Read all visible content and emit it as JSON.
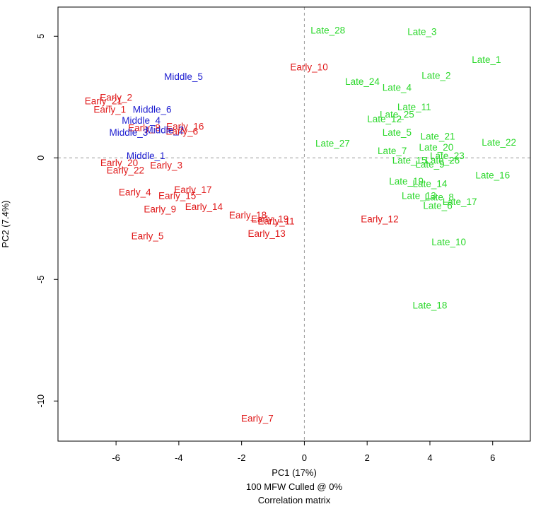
{
  "chart_data": {
    "type": "scatter",
    "xlabel": "PC1 (17%)",
    "ylabel": "PC2 (7.4%)",
    "caption_lines": [
      "100 MFW  Culled @ 0%",
      "Correlation matrix"
    ],
    "xlim": [
      -7.85,
      7.2
    ],
    "ylim": [
      -11.65,
      6.2
    ],
    "xticks": [
      -6,
      -4,
      -2,
      0,
      2,
      4,
      6
    ],
    "yticks": [
      5,
      0,
      -5,
      -10
    ],
    "grid": false,
    "reference_lines": {
      "x": 0,
      "y": 0
    },
    "series": [
      {
        "name": "Early",
        "color": "#e0191a",
        "points": [
          {
            "label": "Early_1",
            "x": -6.2,
            "y": 2.0
          },
          {
            "label": "Early_2",
            "x": -6.0,
            "y": 2.5
          },
          {
            "label": "Early_21",
            "x": -6.4,
            "y": 2.35
          },
          {
            "label": "Early_3",
            "x": -4.4,
            "y": -0.3
          },
          {
            "label": "Early_4",
            "x": -5.4,
            "y": -1.4
          },
          {
            "label": "Early_5",
            "x": -5.0,
            "y": -3.2
          },
          {
            "label": "Early_6",
            "x": -3.9,
            "y": 1.1
          },
          {
            "label": "Early_7",
            "x": -1.5,
            "y": -10.7
          },
          {
            "label": "Early_8",
            "x": -5.1,
            "y": 1.25
          },
          {
            "label": "Early_9",
            "x": -4.6,
            "y": -2.1
          },
          {
            "label": "Early_10",
            "x": 0.15,
            "y": 3.75
          },
          {
            "label": "Early_11",
            "x": -0.9,
            "y": -2.6
          },
          {
            "label": "Early_12",
            "x": 2.4,
            "y": -2.5
          },
          {
            "label": "Early_13",
            "x": -1.2,
            "y": -3.1
          },
          {
            "label": "Early_14",
            "x": -3.2,
            "y": -2.0
          },
          {
            "label": "Early_15",
            "x": -4.05,
            "y": -1.55
          },
          {
            "label": "Early_16",
            "x": -3.8,
            "y": 1.3
          },
          {
            "label": "Early_17",
            "x": -3.55,
            "y": -1.3
          },
          {
            "label": "Early_18",
            "x": -1.8,
            "y": -2.35
          },
          {
            "label": "Early_19",
            "x": -1.1,
            "y": -2.5
          },
          {
            "label": "Early_20",
            "x": -5.9,
            "y": -0.2
          },
          {
            "label": "Early_22",
            "x": -5.7,
            "y": -0.5
          }
        ]
      },
      {
        "name": "Middle",
        "color": "#1c1cd0",
        "points": [
          {
            "label": "Middle_1",
            "x": -5.05,
            "y": 0.1
          },
          {
            "label": "Middle_2",
            "x": -4.45,
            "y": 1.15
          },
          {
            "label": "Middle_3",
            "x": -5.6,
            "y": 1.05
          },
          {
            "label": "Middle_4",
            "x": -5.2,
            "y": 1.55
          },
          {
            "label": "Middle_5",
            "x": -3.85,
            "y": 3.35
          },
          {
            "label": "Middle_6",
            "x": -4.85,
            "y": 2.0
          }
        ]
      },
      {
        "name": "Late",
        "color": "#2bd82b",
        "points": [
          {
            "label": "Late_1",
            "x": 5.8,
            "y": 4.05
          },
          {
            "label": "Late_2",
            "x": 4.2,
            "y": 3.4
          },
          {
            "label": "Late_3",
            "x": 3.75,
            "y": 5.2
          },
          {
            "label": "Late_4",
            "x": 2.95,
            "y": 2.9
          },
          {
            "label": "Late_5",
            "x": 2.95,
            "y": 1.05
          },
          {
            "label": "Late_6",
            "x": 4.25,
            "y": -1.95
          },
          {
            "label": "Late_7",
            "x": 2.8,
            "y": 0.3
          },
          {
            "label": "Late_8",
            "x": 4.3,
            "y": -1.6
          },
          {
            "label": "Late_10",
            "x": 4.6,
            "y": -3.45
          },
          {
            "label": "Late_11",
            "x": 3.5,
            "y": 2.1
          },
          {
            "label": "Late_12",
            "x": 2.55,
            "y": 1.6
          },
          {
            "label": "Late_13",
            "x": 3.65,
            "y": -1.55
          },
          {
            "label": "Late_14",
            "x": 4.0,
            "y": -1.05
          },
          {
            "label": "Late_16",
            "x": 6.0,
            "y": -0.7
          },
          {
            "label": "Late_17",
            "x": 4.95,
            "y": -1.8
          },
          {
            "label": "Late_18",
            "x": 4.0,
            "y": -6.05
          },
          {
            "label": "Late_19",
            "x": 3.25,
            "y": -0.95
          },
          {
            "label": "Late_20",
            "x": 4.2,
            "y": 0.45
          },
          {
            "label": "Late_21",
            "x": 4.25,
            "y": 0.9
          },
          {
            "label": "Late_22",
            "x": 6.2,
            "y": 0.65
          },
          {
            "label": "Late_23",
            "x": 4.55,
            "y": 0.1
          },
          {
            "label": "Late_24",
            "x": 1.85,
            "y": 3.15
          },
          {
            "label": "Late_25",
            "x": 2.95,
            "y": 1.8
          },
          {
            "label": "Late_26",
            "x": 4.4,
            "y": -0.1
          },
          {
            "label": "Late_27",
            "x": 0.9,
            "y": 0.6
          },
          {
            "label": "Late_28",
            "x": 0.75,
            "y": 5.25
          },
          {
            "label": "Late_15",
            "x": 3.35,
            "y": -0.1
          },
          {
            "label": "Late_9",
            "x": 4.0,
            "y": -0.25
          }
        ]
      }
    ]
  }
}
